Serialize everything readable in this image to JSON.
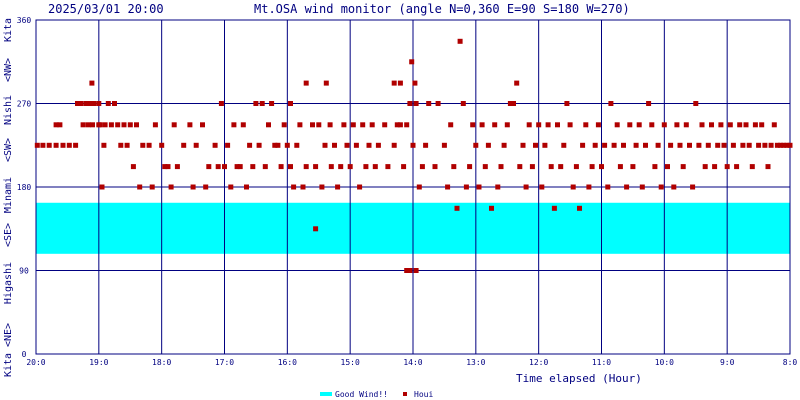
{
  "header": {
    "datetime": "2025/03/01 20:00",
    "title": "Mt.OSA wind monitor (angle N=0,360 E=90 S=180 W=270)"
  },
  "chart_data": {
    "type": "scatter",
    "title": "Mt.OSA wind monitor (angle N=0,360 E=90 S=180 W=270)",
    "xlabel": "Time elapsed (Hour)",
    "ylabel": "Kita <NE> Higashi <SE> Minami <SW> Nishi <NW> Kita",
    "x_range_hours": [
      0,
      12
    ],
    "ylim": [
      0,
      360
    ],
    "y_ticks": [
      0,
      90,
      180,
      270,
      360
    ],
    "x_ticks": [
      "20:0",
      "19:0",
      "18:0",
      "17:0",
      "16:0",
      "15:0",
      "14:0",
      "13:0",
      "12:0",
      "11:0",
      "10:0",
      "9:0",
      "8:0"
    ],
    "y_axis_words": [
      "Kita",
      "<NE>",
      "Higashi",
      "<SE>",
      "Minami",
      "<SW>",
      "Nishi",
      "<NW>",
      "Kita"
    ],
    "good_wind_band": [
      108,
      163
    ],
    "grid": true,
    "legend_position": "bottom-center",
    "series": [
      {
        "name": "Houi",
        "color": "#b00000",
        "points": [
          [
            0.02,
            225
          ],
          [
            0.11,
            225
          ],
          [
            0.21,
            225
          ],
          [
            0.32,
            225
          ],
          [
            0.43,
            225
          ],
          [
            0.53,
            225
          ],
          [
            0.63,
            225
          ],
          [
            0.32,
            247
          ],
          [
            0.38,
            247
          ],
          [
            0.66,
            270
          ],
          [
            0.72,
            270
          ],
          [
            0.8,
            270
          ],
          [
            0.86,
            270
          ],
          [
            0.92,
            270
          ],
          [
            1.0,
            270
          ],
          [
            0.75,
            247
          ],
          [
            0.83,
            247
          ],
          [
            0.9,
            247
          ],
          [
            1.02,
            247
          ],
          [
            1.1,
            247
          ],
          [
            1.2,
            247
          ],
          [
            1.3,
            247
          ],
          [
            1.4,
            247
          ],
          [
            1.5,
            247
          ],
          [
            0.89,
            292
          ],
          [
            1.0,
            247
          ],
          [
            1.05,
            180
          ],
          [
            1.08,
            225
          ],
          [
            1.15,
            270
          ],
          [
            1.25,
            270
          ],
          [
            1.35,
            225
          ],
          [
            1.45,
            225
          ],
          [
            1.55,
            202
          ],
          [
            1.6,
            247
          ],
          [
            1.7,
            225
          ],
          [
            1.8,
            225
          ],
          [
            1.9,
            247
          ],
          [
            2.0,
            225
          ],
          [
            2.1,
            202
          ],
          [
            2.2,
            247
          ],
          [
            1.65,
            180
          ],
          [
            1.85,
            180
          ],
          [
            2.05,
            202
          ],
          [
            2.25,
            202
          ],
          [
            2.35,
            225
          ],
          [
            2.45,
            247
          ],
          [
            2.55,
            225
          ],
          [
            2.15,
            180
          ],
          [
            2.5,
            180
          ],
          [
            2.65,
            247
          ],
          [
            2.75,
            202
          ],
          [
            2.85,
            225
          ],
          [
            2.95,
            270
          ],
          [
            3.05,
            225
          ],
          [
            3.15,
            247
          ],
          [
            2.7,
            180
          ],
          [
            2.9,
            202
          ],
          [
            3.0,
            202
          ],
          [
            3.2,
            202
          ],
          [
            3.3,
            247
          ],
          [
            3.4,
            225
          ],
          [
            3.5,
            270
          ],
          [
            3.6,
            270
          ],
          [
            3.7,
            247
          ],
          [
            3.1,
            180
          ],
          [
            3.25,
            202
          ],
          [
            3.45,
            202
          ],
          [
            3.55,
            225
          ],
          [
            3.75,
            270
          ],
          [
            3.85,
            225
          ],
          [
            3.95,
            247
          ],
          [
            4.05,
            202
          ],
          [
            3.35,
            180
          ],
          [
            3.65,
            202
          ],
          [
            3.8,
            225
          ],
          [
            3.9,
            202
          ],
          [
            4.0,
            225
          ],
          [
            4.1,
            180
          ],
          [
            4.2,
            247
          ],
          [
            4.3,
            202
          ],
          [
            4.05,
            270
          ],
          [
            4.15,
            225
          ],
          [
            4.3,
            292
          ],
          [
            4.4,
            247
          ],
          [
            4.45,
            202
          ],
          [
            4.5,
            247
          ],
          [
            4.6,
            225
          ],
          [
            4.7,
            202
          ],
          [
            4.25,
            180
          ],
          [
            4.55,
            180
          ],
          [
            4.62,
            292
          ],
          [
            4.68,
            247
          ],
          [
            4.75,
            225
          ],
          [
            4.85,
            202
          ],
          [
            4.95,
            225
          ],
          [
            5.05,
            247
          ],
          [
            4.8,
            180
          ],
          [
            4.9,
            247
          ],
          [
            5.0,
            202
          ],
          [
            5.1,
            225
          ],
          [
            5.15,
            180
          ],
          [
            5.2,
            247
          ],
          [
            5.3,
            225
          ],
          [
            5.4,
            202
          ],
          [
            4.45,
            135
          ],
          [
            5.25,
            202
          ],
          [
            5.35,
            247
          ],
          [
            5.45,
            225
          ],
          [
            5.55,
            247
          ],
          [
            5.6,
            202
          ],
          [
            5.7,
            225
          ],
          [
            5.8,
            247
          ],
          [
            5.7,
            292
          ],
          [
            5.75,
            247
          ],
          [
            5.8,
            292
          ],
          [
            5.85,
            202
          ],
          [
            5.9,
            247
          ],
          [
            5.95,
            270
          ],
          [
            6.0,
            225
          ],
          [
            5.9,
            90
          ],
          [
            5.95,
            90
          ],
          [
            6.05,
            90
          ],
          [
            5.98,
            315
          ],
          [
            6.03,
            292
          ],
          [
            6.05,
            270
          ],
          [
            6.1,
            180
          ],
          [
            6.15,
            202
          ],
          [
            6.2,
            225
          ],
          [
            6.25,
            270
          ],
          [
            6.35,
            202
          ],
          [
            6.4,
            270
          ],
          [
            6.5,
            225
          ],
          [
            6.55,
            180
          ],
          [
            6.6,
            247
          ],
          [
            6.65,
            202
          ],
          [
            6.7,
            157
          ],
          [
            6.75,
            337
          ],
          [
            6.8,
            270
          ],
          [
            6.85,
            180
          ],
          [
            6.9,
            202
          ],
          [
            6.95,
            247
          ],
          [
            7.0,
            225
          ],
          [
            7.05,
            180
          ],
          [
            7.1,
            247
          ],
          [
            7.15,
            202
          ],
          [
            7.2,
            225
          ],
          [
            7.25,
            157
          ],
          [
            7.3,
            247
          ],
          [
            7.35,
            180
          ],
          [
            7.4,
            202
          ],
          [
            7.45,
            225
          ],
          [
            7.5,
            247
          ],
          [
            7.55,
            270
          ],
          [
            7.6,
            270
          ],
          [
            7.65,
            292
          ],
          [
            7.7,
            202
          ],
          [
            7.75,
            225
          ],
          [
            7.8,
            180
          ],
          [
            7.85,
            247
          ],
          [
            7.9,
            202
          ],
          [
            7.95,
            225
          ],
          [
            8.0,
            247
          ],
          [
            8.05,
            180
          ],
          [
            8.1,
            225
          ],
          [
            8.15,
            247
          ],
          [
            8.2,
            202
          ],
          [
            8.25,
            157
          ],
          [
            8.3,
            247
          ],
          [
            8.35,
            202
          ],
          [
            8.4,
            225
          ],
          [
            8.45,
            270
          ],
          [
            8.5,
            247
          ],
          [
            8.55,
            180
          ],
          [
            8.6,
            202
          ],
          [
            8.65,
            157
          ],
          [
            8.7,
            225
          ],
          [
            8.75,
            247
          ],
          [
            8.8,
            180
          ],
          [
            8.85,
            202
          ],
          [
            8.9,
            225
          ],
          [
            8.95,
            247
          ],
          [
            9.0,
            202
          ],
          [
            9.05,
            225
          ],
          [
            9.1,
            180
          ],
          [
            9.15,
            270
          ],
          [
            9.2,
            225
          ],
          [
            9.25,
            247
          ],
          [
            9.3,
            202
          ],
          [
            9.35,
            225
          ],
          [
            9.4,
            180
          ],
          [
            9.45,
            247
          ],
          [
            9.5,
            202
          ],
          [
            9.55,
            225
          ],
          [
            9.6,
            247
          ],
          [
            9.65,
            180
          ],
          [
            9.7,
            225
          ],
          [
            9.75,
            270
          ],
          [
            9.8,
            247
          ],
          [
            9.85,
            202
          ],
          [
            9.9,
            225
          ],
          [
            9.95,
            180
          ],
          [
            10.0,
            247
          ],
          [
            10.05,
            202
          ],
          [
            10.1,
            225
          ],
          [
            10.15,
            180
          ],
          [
            10.2,
            247
          ],
          [
            10.25,
            225
          ],
          [
            10.3,
            202
          ],
          [
            10.35,
            247
          ],
          [
            10.4,
            225
          ],
          [
            10.45,
            180
          ],
          [
            10.5,
            270
          ],
          [
            10.55,
            225
          ],
          [
            10.6,
            247
          ],
          [
            10.65,
            202
          ],
          [
            10.7,
            225
          ],
          [
            10.75,
            247
          ],
          [
            10.8,
            202
          ],
          [
            10.85,
            225
          ],
          [
            10.9,
            247
          ],
          [
            10.95,
            225
          ],
          [
            11.0,
            202
          ],
          [
            11.05,
            247
          ],
          [
            11.1,
            225
          ],
          [
            11.15,
            202
          ],
          [
            11.2,
            247
          ],
          [
            11.25,
            225
          ],
          [
            11.3,
            247
          ],
          [
            11.35,
            225
          ],
          [
            11.4,
            202
          ],
          [
            11.45,
            247
          ],
          [
            11.5,
            225
          ],
          [
            11.55,
            247
          ],
          [
            11.6,
            225
          ],
          [
            11.65,
            202
          ],
          [
            11.7,
            225
          ],
          [
            11.75,
            247
          ],
          [
            11.8,
            225
          ],
          [
            11.85,
            225
          ],
          [
            11.9,
            225
          ],
          [
            11.95,
            225
          ],
          [
            12.0,
            225
          ]
        ]
      }
    ]
  },
  "legend": {
    "good_wind": "Good Wind!!",
    "houi": "Houi",
    "good_wind_color": "#00ffff",
    "houi_color": "#b00000"
  },
  "colors": {
    "frame": "#000080",
    "grid": "#000080",
    "text": "#000080",
    "band": "#00ffff",
    "point": "#b00000"
  }
}
